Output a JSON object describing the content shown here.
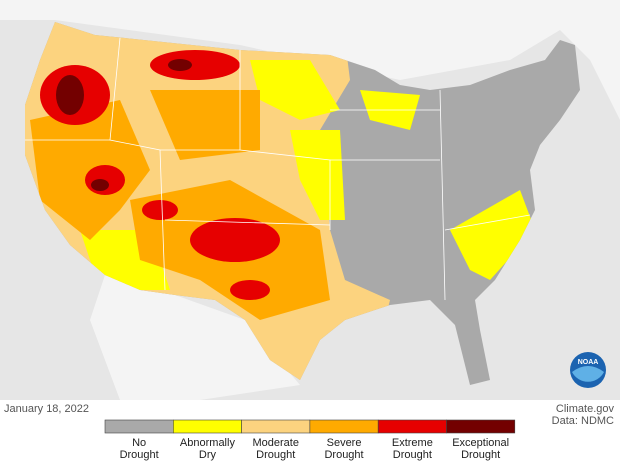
{
  "date": "January 18, 2022",
  "credit": "Climate.gov",
  "source": "Data: NDMC",
  "logo": "NOAA",
  "legend": [
    {
      "lines": [
        "No",
        "Drought"
      ],
      "color": "#a9a9a9"
    },
    {
      "lines": [
        "Abnormally",
        "Dry"
      ],
      "color": "#ffff00"
    },
    {
      "lines": [
        "Moderate",
        "Drought"
      ],
      "color": "#fcd37f"
    },
    {
      "lines": [
        "Severe",
        "Drought"
      ],
      "color": "#ffaa00"
    },
    {
      "lines": [
        "Extreme",
        "Drought"
      ],
      "color": "#e60000"
    },
    {
      "lines": [
        "Exceptional",
        "Drought"
      ],
      "color": "#730000"
    }
  ]
}
